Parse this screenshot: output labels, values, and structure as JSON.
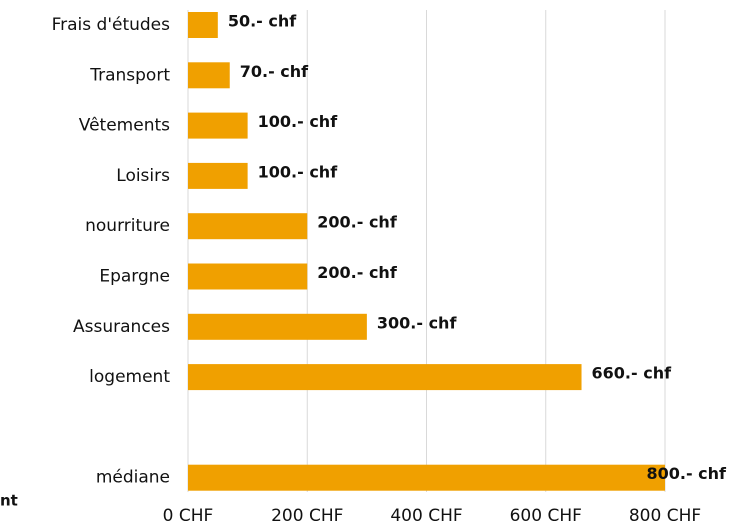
{
  "chart_data": {
    "type": "bar",
    "orientation": "horizontal",
    "categories": [
      "Frais d'études",
      "Transport",
      "Vêtements",
      "Loisirs",
      "nourriture",
      "Epargne",
      "Assurances",
      "logement",
      null,
      "médiane"
    ],
    "values": [
      50,
      70,
      100,
      100,
      200,
      200,
      300,
      660,
      null,
      800
    ],
    "value_labels": [
      "50.- chf",
      "70.- chf",
      "100.- chf",
      "100.- chf",
      "200.- chf",
      "200.- chf",
      "300.- chf",
      "660.- chf",
      null,
      "800.- chf"
    ],
    "color": "#f0a000",
    "xlim": [
      0,
      800
    ],
    "xticks": [
      {
        "value": 0,
        "label": "0 CHF"
      },
      {
        "value": 200,
        "label": "200 CHF"
      },
      {
        "value": 400,
        "label": "400 CHF"
      },
      {
        "value": 600,
        "label": "600 CHF"
      },
      {
        "value": 800,
        "label": "800 CHF"
      }
    ],
    "grid": true
  },
  "fragments": [
    "nt"
  ]
}
